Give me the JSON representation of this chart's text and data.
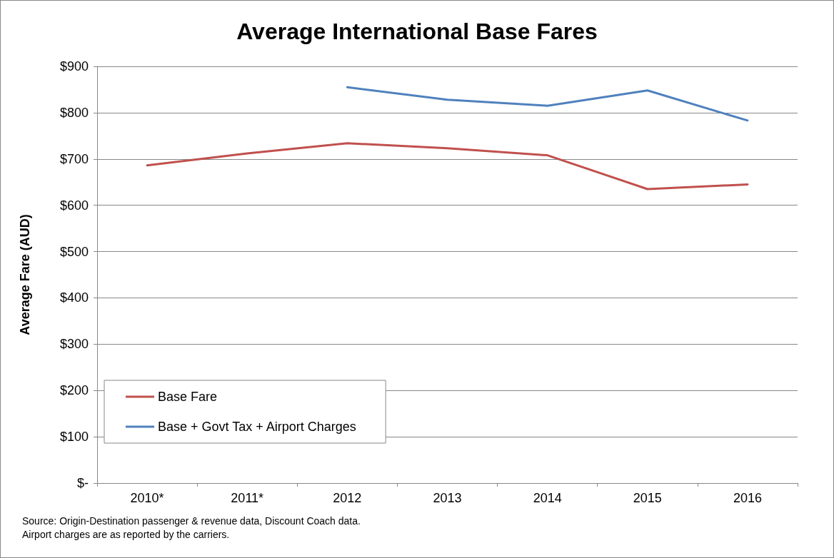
{
  "chart_data": {
    "type": "line",
    "title": "Average International Base Fares",
    "ylabel": "Average Fare (AUD)",
    "categories": [
      "2010*",
      "2011*",
      "2012",
      "2013",
      "2014",
      "2015",
      "2016"
    ],
    "series": [
      {
        "name": "Base Fare",
        "color": "#c0504d",
        "values": [
          686,
          712,
          734,
          723,
          708,
          635,
          645
        ]
      },
      {
        "name": "Base + Govt Tax + Airport Charges",
        "color": "#4f81bd",
        "values": [
          null,
          null,
          855,
          828,
          815,
          848,
          783
        ]
      }
    ],
    "ylim": [
      0,
      900
    ],
    "yticks": [
      {
        "value": 0,
        "label": "$-"
      },
      {
        "value": 100,
        "label": "$100"
      },
      {
        "value": 200,
        "label": "$200"
      },
      {
        "value": 300,
        "label": "$300"
      },
      {
        "value": 400,
        "label": "$400"
      },
      {
        "value": 500,
        "label": "$500"
      },
      {
        "value": 600,
        "label": "$600"
      },
      {
        "value": 700,
        "label": "$700"
      },
      {
        "value": 800,
        "label": "$800"
      },
      {
        "value": 900,
        "label": "$900"
      }
    ],
    "grid": "y",
    "legend": "bottom left",
    "marker": "none",
    "line_style": "solid",
    "annotations": [
      "Source: Origin-Destination passenger & revenue data, Discount Coach data.",
      "Airport charges are as reported by the carriers."
    ]
  }
}
